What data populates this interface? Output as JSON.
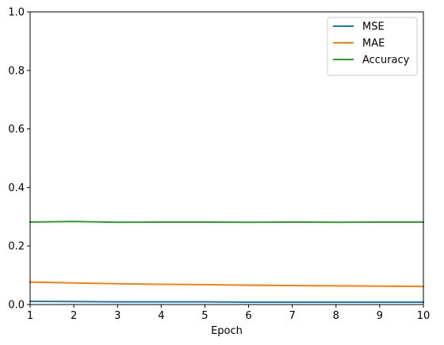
{
  "chart_data": {
    "type": "line",
    "title": "",
    "xlabel": "Epoch",
    "ylabel": "",
    "xlim": [
      1,
      10
    ],
    "ylim": [
      0.0,
      1.0
    ],
    "x": [
      1,
      2,
      3,
      4,
      5,
      6,
      7,
      8,
      9,
      10
    ],
    "xticks": [
      "1",
      "2",
      "3",
      "4",
      "5",
      "6",
      "7",
      "8",
      "9",
      "10"
    ],
    "yticks": [
      "0.0",
      "0.2",
      "0.4",
      "0.6",
      "0.8",
      "1.0"
    ],
    "grid": false,
    "legend_position": "upper-right",
    "series": [
      {
        "name": "MSE",
        "color": "#1f77b4",
        "values": [
          0.011,
          0.01,
          0.009,
          0.009,
          0.009,
          0.008,
          0.008,
          0.008,
          0.008,
          0.008
        ]
      },
      {
        "name": "MAE",
        "color": "#ff7f0e",
        "values": [
          0.077,
          0.074,
          0.071,
          0.069,
          0.068,
          0.066,
          0.065,
          0.064,
          0.063,
          0.062
        ]
      },
      {
        "name": "Accuracy",
        "color": "#2ca02c",
        "values": [
          0.282,
          0.284,
          0.281,
          0.282,
          0.282,
          0.281,
          0.282,
          0.281,
          0.282,
          0.282
        ]
      }
    ]
  }
}
